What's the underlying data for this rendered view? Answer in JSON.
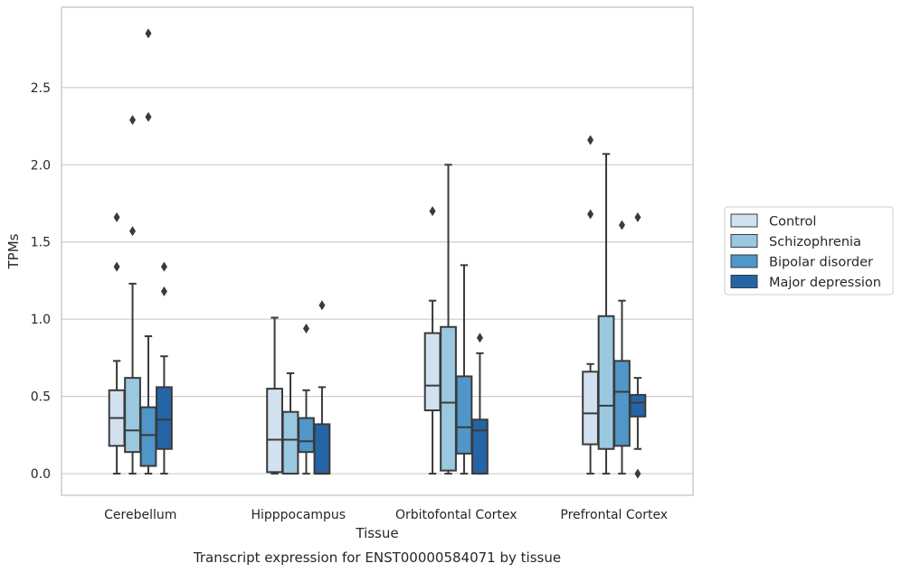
{
  "caption": "Transcript expression for ENST00000584071 by tissue",
  "colors": {
    "Control": "#d2e1f0",
    "Schizophrenia": "#9ac8e0",
    "Bipolar disorder": "#5096c8",
    "Major depression": "#2565a6",
    "line": "#3a3a3a",
    "grid": "#cccccc"
  },
  "chart_data": {
    "type": "boxplot",
    "xlabel": "Tissue",
    "ylabel": "TPMs",
    "ylim": [
      -0.14,
      3.02
    ],
    "yticks": [
      "0.0",
      "0.5",
      "1.0",
      "1.5",
      "2.0",
      "2.5"
    ],
    "grid": true,
    "legend_position": "right",
    "categories": [
      "Cerebellum",
      "Hipppocampus",
      "Orbitofontal Cortex",
      "Prefrontal Cortex"
    ],
    "series": [
      {
        "name": "Control",
        "boxes": [
          {
            "whislo": 0.0,
            "q1": 0.18,
            "med": 0.36,
            "q3": 0.54,
            "whishi": 0.73,
            "fliers": [
              1.34,
              1.66
            ]
          },
          {
            "whislo": 0.0,
            "q1": 0.01,
            "med": 0.22,
            "q3": 0.55,
            "whishi": 1.01,
            "fliers": []
          },
          {
            "whislo": 0.0,
            "q1": 0.41,
            "med": 0.57,
            "q3": 0.91,
            "whishi": 1.12,
            "fliers": [
              1.7
            ]
          },
          {
            "whislo": 0.0,
            "q1": 0.19,
            "med": 0.39,
            "q3": 0.66,
            "whishi": 0.71,
            "fliers": [
              1.68,
              2.16
            ]
          }
        ]
      },
      {
        "name": "Schizophrenia",
        "boxes": [
          {
            "whislo": 0.0,
            "q1": 0.14,
            "med": 0.28,
            "q3": 0.62,
            "whishi": 1.23,
            "fliers": [
              1.57,
              2.29
            ]
          },
          {
            "whislo": 0.0,
            "q1": 0.0,
            "med": 0.22,
            "q3": 0.4,
            "whishi": 0.65,
            "fliers": []
          },
          {
            "whislo": 0.0,
            "q1": 0.02,
            "med": 0.46,
            "q3": 0.95,
            "whishi": 2.0,
            "fliers": []
          },
          {
            "whislo": 0.0,
            "q1": 0.16,
            "med": 0.44,
            "q3": 1.02,
            "whishi": 2.07,
            "fliers": []
          }
        ]
      },
      {
        "name": "Bipolar disorder",
        "boxes": [
          {
            "whislo": 0.0,
            "q1": 0.05,
            "med": 0.25,
            "q3": 0.43,
            "whishi": 0.89,
            "fliers": [
              2.31,
              2.85
            ]
          },
          {
            "whislo": 0.0,
            "q1": 0.14,
            "med": 0.21,
            "q3": 0.36,
            "whishi": 0.54,
            "fliers": [
              0.94
            ]
          },
          {
            "whislo": 0.0,
            "q1": 0.13,
            "med": 0.3,
            "q3": 0.63,
            "whishi": 1.35,
            "fliers": []
          },
          {
            "whislo": 0.0,
            "q1": 0.18,
            "med": 0.53,
            "q3": 0.73,
            "whishi": 1.12,
            "fliers": [
              1.61
            ]
          }
        ]
      },
      {
        "name": "Major depression",
        "boxes": [
          {
            "whislo": 0.0,
            "q1": 0.16,
            "med": 0.35,
            "q3": 0.56,
            "whishi": 0.76,
            "fliers": [
              1.18,
              1.34
            ]
          },
          {
            "whislo": 0.0,
            "q1": 0.0,
            "med": 0.0,
            "q3": 0.32,
            "whishi": 0.56,
            "fliers": [
              1.09
            ]
          },
          {
            "whislo": 0.0,
            "q1": 0.0,
            "med": 0.28,
            "q3": 0.35,
            "whishi": 0.78,
            "fliers": [
              0.88
            ]
          },
          {
            "whislo": 0.16,
            "q1": 0.37,
            "med": 0.46,
            "q3": 0.51,
            "whishi": 0.62,
            "fliers": [
              0.0,
              1.66
            ]
          }
        ]
      }
    ]
  }
}
